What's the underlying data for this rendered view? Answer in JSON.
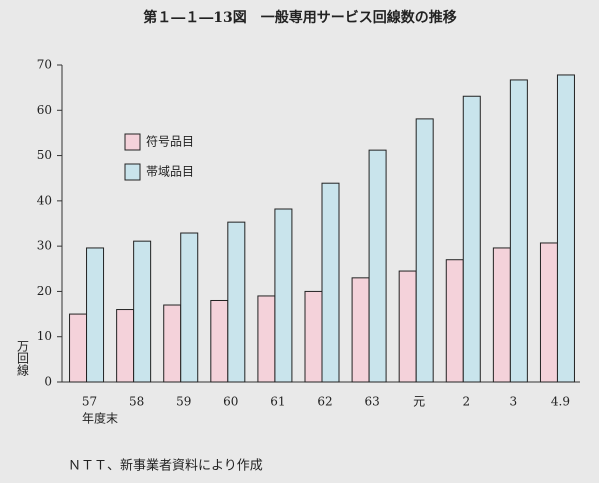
{
  "chart_data": {
    "type": "bar",
    "title": "第１―１―13図　一般専用サービス回線数の推移",
    "y_label": "万回線",
    "x_label": "年度末",
    "source": "ＮＴＴ、新事業者資料により作成",
    "categories": [
      "57",
      "58",
      "59",
      "60",
      "61",
      "62",
      "63",
      "元",
      "2",
      "3",
      "4.9"
    ],
    "series": [
      {
        "name": "符号品目",
        "color": "#f4d2da",
        "values": [
          15,
          16,
          17,
          18,
          19,
          20,
          23,
          24.5,
          27,
          29.6,
          30.7
        ]
      },
      {
        "name": "帯域品目",
        "color": "#c9e4ec",
        "values": [
          29.6,
          31.1,
          32.9,
          35.3,
          38.2,
          43.9,
          51.2,
          58.1,
          63.1,
          66.7,
          67.8
        ]
      }
    ],
    "ylim": [
      0,
      70
    ],
    "yticks": [
      0,
      10,
      20,
      30,
      40,
      50,
      60,
      70
    ],
    "legend": "upper-left"
  }
}
